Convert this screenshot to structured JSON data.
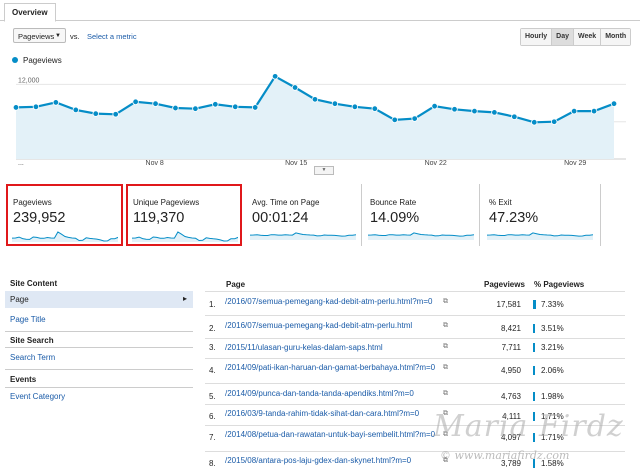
{
  "tab": "Overview",
  "metric_selector": {
    "value": "Pageviews",
    "vs": "vs.",
    "select_metric": "Select a metric"
  },
  "granularity": [
    {
      "label": "Hourly",
      "active": false
    },
    {
      "label": "Day",
      "active": true
    },
    {
      "label": "Week",
      "active": false
    },
    {
      "label": "Month",
      "active": false
    }
  ],
  "chart_data": {
    "type": "area",
    "series": [
      {
        "name": "Pageviews",
        "values": [
          8300,
          8400,
          9100,
          7900,
          7300,
          7200,
          9200,
          8900,
          8200,
          8100,
          8800,
          8400,
          8300,
          13300,
          11500,
          9600,
          8900,
          8400,
          8100,
          6300,
          6500,
          8500,
          8000,
          7700,
          7500,
          6800,
          5900,
          6000,
          7700,
          7700,
          8900
        ]
      }
    ],
    "x_tick_labels": [
      "...",
      "Nov 8",
      "Nov 15",
      "Nov 22",
      "Nov 29"
    ],
    "y_tick_labels": [
      "12,000",
      "6,000"
    ],
    "ylim": [
      0,
      14000
    ],
    "color": "#058dc7"
  },
  "cards": [
    {
      "title": "Pageviews",
      "value": "239,952",
      "highlighted": true
    },
    {
      "title": "Unique Pageviews",
      "value": "119,370",
      "highlighted": true
    },
    {
      "title": "Avg. Time on Page",
      "value": "00:01:24",
      "highlighted": false
    },
    {
      "title": "Bounce Rate",
      "value": "14.09%",
      "highlighted": false
    },
    {
      "title": "% Exit",
      "value": "47.23%",
      "highlighted": false
    }
  ],
  "sidenav": {
    "site_content": "Site Content",
    "page": "Page",
    "page_title": "Page Title",
    "site_search": "Site Search",
    "search_term": "Search Term",
    "events": "Events",
    "event_category": "Event Category"
  },
  "table": {
    "headers": {
      "page": "Page",
      "pageviews": "Pageviews",
      "pct": "% Pageviews"
    },
    "rows": [
      {
        "num": "1.",
        "page": "/2016/07/semua-pemegang-kad-debit-atm-perlu.html?m=0",
        "pageviews": "17,581",
        "pct": "7.33%",
        "frac": 0.0733
      },
      {
        "num": "2.",
        "page": "/2016/07/semua-pemegang-kad-debit-atm-perlu.html",
        "pageviews": "8,421",
        "pct": "3.51%",
        "frac": 0.0351
      },
      {
        "num": "3.",
        "page": "/2015/11/ulasan-guru-kelas-dalam-saps.html",
        "pageviews": "7,711",
        "pct": "3.21%",
        "frac": 0.0321
      },
      {
        "num": "4.",
        "page": "/2014/09/pati-ikan-haruan-dan-gamat-berbahaya.html?m=0",
        "pageviews": "4,950",
        "pct": "2.06%",
        "frac": 0.0206
      },
      {
        "num": "5.",
        "page": "/2014/09/punca-dan-tanda-tanda-apendiks.html?m=0",
        "pageviews": "4,763",
        "pct": "1.98%",
        "frac": 0.0198
      },
      {
        "num": "6.",
        "page": "/2016/03/9-tanda-rahim-tidak-sihat-dan-cara.html?m=0",
        "pageviews": "4,111",
        "pct": "1.71%",
        "frac": 0.0171
      },
      {
        "num": "7.",
        "page": "/2014/08/petua-dan-rawatan-untuk-bayi-sembelit.html?m=0",
        "pageviews": "4,097",
        "pct": "1.71%",
        "frac": 0.0171
      },
      {
        "num": "8.",
        "page": "/2015/08/antara-pos-laju-gdex-dan-skynet.html?m=0",
        "pageviews": "3,789",
        "pct": "1.58%",
        "frac": 0.0158
      }
    ]
  },
  "watermark": {
    "name": "Maria Firdz",
    "url": "© www.mariafirdz.com"
  }
}
